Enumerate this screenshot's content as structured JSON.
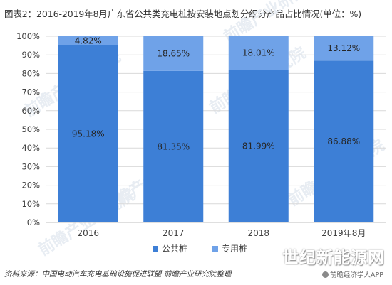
{
  "title": "图表2：2016-2019年8月广东省公共类充电桩按安装地点划分细分产品占比情况(单位：%)",
  "source": "资料来源：中国电动汽车充电基础设施促进联盟 前瞻产业研究院整理",
  "watermark": {
    "brand": "世纪新能源网",
    "sub": "前瞻经济学人APP",
    "diagonal": "前瞻产业研究院"
  },
  "colors": {
    "series1": "#3d7fd6",
    "series2": "#6fa2e8",
    "grid": "#d9d9d9",
    "axis": "#bfbfbf"
  },
  "chart_data": {
    "type": "bar",
    "stacked": true,
    "categories": [
      "2016",
      "2017",
      "2018",
      "2019年8月"
    ],
    "series": [
      {
        "name": "公共桩",
        "values": [
          95.18,
          81.35,
          81.99,
          86.88
        ],
        "labels": [
          "95.18%",
          "81.35%",
          "81.99%",
          "86.88%"
        ]
      },
      {
        "name": "专用桩",
        "values": [
          4.82,
          18.65,
          18.01,
          13.12
        ],
        "labels": [
          "4.82%",
          "18.65%",
          "18.01%",
          "13.12%"
        ]
      }
    ],
    "yticks": [
      "0%",
      "10%",
      "20%",
      "30%",
      "40%",
      "50%",
      "60%",
      "70%",
      "80%",
      "90%",
      "100%"
    ],
    "ylim": [
      0,
      100
    ],
    "grid": true,
    "legend": "bottom"
  }
}
